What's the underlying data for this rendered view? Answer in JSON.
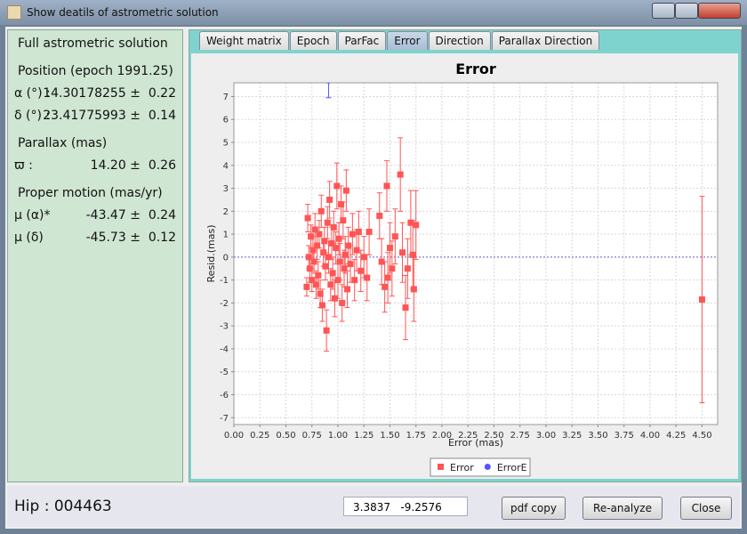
{
  "window": {
    "title": "Show deatils of astrometric solution"
  },
  "solution": {
    "heading": "Full astrometric solution",
    "sections": [
      {
        "title": "Position (epoch 1991.25)",
        "rows": [
          {
            "label": "α (°) :",
            "value": "14.30178255 ±  0.22"
          },
          {
            "label": "δ (°) :",
            "value": "23.41775993 ±  0.14"
          }
        ]
      },
      {
        "title": "Parallax (mas)",
        "rows": [
          {
            "label": "ϖ :",
            "value": "14.20 ±  0.26"
          }
        ]
      },
      {
        "title": "Proper motion (mas/yr)",
        "rows": [
          {
            "label": "μ (α)*",
            "value": "-43.47 ±  0.24"
          },
          {
            "label": "μ (δ)",
            "value": "-45.73 ±  0.12"
          }
        ]
      }
    ]
  },
  "tabs": {
    "items": [
      "Weight matrix",
      "Epoch",
      "ParFac",
      "Error",
      "Direction",
      "Parallax Direction"
    ],
    "active": "Error"
  },
  "chart_data": {
    "type": "errorbar-scatter",
    "title": "Error",
    "x_label": "Error (mas)",
    "y_label": "Resid.(mas)",
    "xlim": [
      0,
      4.65
    ],
    "ylim": [
      -7.3,
      7.6
    ],
    "xticks": [
      {
        "value": 0,
        "label": "0.00"
      },
      {
        "value": 0.25,
        "label": "0.25"
      },
      {
        "value": 0.5,
        "label": "0.50"
      },
      {
        "value": 0.75,
        "label": "0.75"
      },
      {
        "value": 1,
        "label": "1.00"
      },
      {
        "value": 1.25,
        "label": "1.25"
      },
      {
        "value": 1.5,
        "label": "1.50"
      },
      {
        "value": 1.75,
        "label": "1.75"
      },
      {
        "value": 2,
        "label": "2.00"
      },
      {
        "value": 2.25,
        "label": "2.25"
      },
      {
        "value": 2.5,
        "label": "2.50"
      },
      {
        "value": 2.75,
        "label": "2.75"
      },
      {
        "value": 3,
        "label": "3.00"
      },
      {
        "value": 3.25,
        "label": "3.25"
      },
      {
        "value": 3.5,
        "label": "3.50"
      },
      {
        "value": 3.75,
        "label": "3.75"
      },
      {
        "value": 4,
        "label": "4.00"
      },
      {
        "value": 4.25,
        "label": "4.25"
      },
      {
        "value": 4.5,
        "label": "4.50"
      }
    ],
    "yticks": [
      -7,
      -6,
      -5,
      -4,
      -3,
      -2,
      -1,
      0,
      1,
      2,
      3,
      4,
      5,
      6,
      7
    ],
    "grid": true,
    "legend": "bottom",
    "series": [
      {
        "name": "Error",
        "color": "#ff5555",
        "marker": "square",
        "x": [
          0.7,
          0.71,
          0.72,
          0.73,
          0.74,
          0.75,
          0.76,
          0.77,
          0.78,
          0.79,
          0.8,
          0.81,
          0.82,
          0.83,
          0.84,
          0.85,
          0.86,
          0.87,
          0.88,
          0.89,
          0.9,
          0.91,
          0.92,
          0.93,
          0.94,
          0.95,
          0.96,
          0.97,
          0.98,
          0.99,
          1.0,
          1.01,
          1.02,
          1.03,
          1.04,
          1.05,
          1.06,
          1.07,
          1.08,
          1.09,
          1.1,
          1.12,
          1.14,
          1.16,
          1.18,
          1.2,
          1.22,
          1.25,
          1.28,
          1.3,
          1.4,
          1.42,
          1.45,
          1.47,
          1.48,
          1.5,
          1.52,
          1.55,
          1.6,
          1.62,
          1.65,
          1.67,
          1.7,
          1.72,
          1.73,
          1.75,
          4.5
        ],
        "values": [
          -1.3,
          1.7,
          0.0,
          -0.5,
          0.9,
          -1.0,
          0.3,
          -0.2,
          1.2,
          -1.2,
          0.5,
          -0.8,
          1.0,
          -1.6,
          2.0,
          -2.1,
          0.2,
          0.7,
          -0.4,
          -3.2,
          1.5,
          0.0,
          2.5,
          -1.2,
          0.6,
          -0.7,
          1.3,
          -1.8,
          0.4,
          3.1,
          -1.0,
          0.8,
          -0.2,
          2.3,
          -2.0,
          1.6,
          -0.5,
          0.1,
          2.9,
          -1.4,
          0.5,
          -0.3,
          1.0,
          -1.0,
          0.3,
          1.1,
          -0.6,
          0.0,
          -0.9,
          1.1,
          1.8,
          -0.2,
          -1.3,
          3.1,
          -0.9,
          0.4,
          -0.5,
          0.9,
          3.6,
          0.2,
          -2.2,
          -0.5,
          1.5,
          0.1,
          -1.4,
          1.4,
          -1.85
        ],
        "errors": [
          0.4,
          0.6,
          0.5,
          0.6,
          0.5,
          0.5,
          0.6,
          0.5,
          0.7,
          0.6,
          0.6,
          0.6,
          0.6,
          0.6,
          0.7,
          0.7,
          0.6,
          0.6,
          0.6,
          0.9,
          0.7,
          0.7,
          0.8,
          0.7,
          0.7,
          0.7,
          0.7,
          0.8,
          0.7,
          1.0,
          0.8,
          0.7,
          0.8,
          0.8,
          0.8,
          0.8,
          0.8,
          0.8,
          0.9,
          0.8,
          0.8,
          0.8,
          0.9,
          0.9,
          0.9,
          0.9,
          0.9,
          0.9,
          1.0,
          1.0,
          1.0,
          1.0,
          1.1,
          1.1,
          1.1,
          1.1,
          1.2,
          1.2,
          1.6,
          1.3,
          1.4,
          1.3,
          1.4,
          1.5,
          1.4,
          1.5,
          4.5
        ]
      },
      {
        "name": "ErrorE",
        "color": "#5555ff",
        "marker": "circle",
        "x": [
          0.91
        ],
        "values": [
          7.7
        ],
        "errors": [
          0.75
        ]
      }
    ]
  },
  "status": {
    "hip": "Hip : 004463",
    "coords": "3.3837   -9.2576",
    "buttons": [
      "pdf copy",
      "Re-analyze",
      "Close"
    ]
  }
}
